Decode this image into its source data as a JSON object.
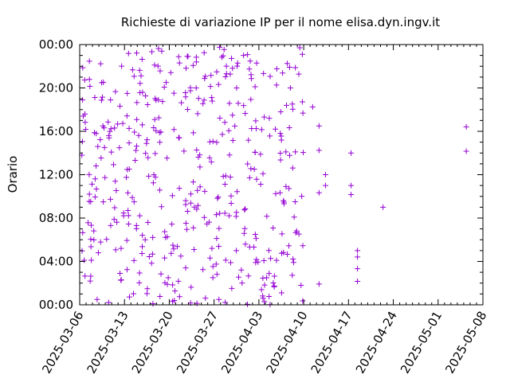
{
  "chart_data": {
    "type": "scatter",
    "title": "Richieste di variazione IP per il nome elisa.dyn.ingv.it",
    "xlabel": "",
    "ylabel": "Orario",
    "x_range": [
      "2025-03-06",
      "2025-05-08"
    ],
    "y_range": [
      "00:00",
      "24:00"
    ],
    "x_ticks": [
      "2025-03-06",
      "2025-03-13",
      "2025-03-20",
      "2025-03-27",
      "2025-04-03",
      "2025-04-10",
      "2025-04-17",
      "2025-04-24",
      "2025-05-01",
      "2025-05-08"
    ],
    "y_ticks": [
      "00:00",
      "04:00",
      "08:00",
      "12:00",
      "16:00",
      "20:00",
      "00:00"
    ],
    "grid": false,
    "marker": "+",
    "color": "#9400d3",
    "dense_period": [
      "2025-03-06",
      "2025-04-10"
    ],
    "points": [
      {
        "x": "2025-04-11",
        "y": "18:15"
      },
      {
        "x": "2025-04-12",
        "y": "16:30"
      },
      {
        "x": "2025-04-12",
        "y": "14:15"
      },
      {
        "x": "2025-04-12",
        "y": "10:20"
      },
      {
        "x": "2025-04-12",
        "y": "01:55"
      },
      {
        "x": "2025-04-13",
        "y": "11:00"
      },
      {
        "x": "2025-04-13",
        "y": "12:00"
      },
      {
        "x": "2025-04-17",
        "y": "14:00"
      },
      {
        "x": "2025-04-17",
        "y": "11:00"
      },
      {
        "x": "2025-04-17",
        "y": "10:10"
      },
      {
        "x": "2025-04-18",
        "y": "05:00"
      },
      {
        "x": "2025-04-18",
        "y": "04:25"
      },
      {
        "x": "2025-04-18",
        "y": "03:20"
      },
      {
        "x": "2025-04-18",
        "y": "02:10"
      },
      {
        "x": "2025-04-22",
        "y": "09:00"
      },
      {
        "x": "2025-05-05",
        "y": "16:25"
      },
      {
        "x": "2025-05-05",
        "y": "14:10"
      }
    ]
  }
}
